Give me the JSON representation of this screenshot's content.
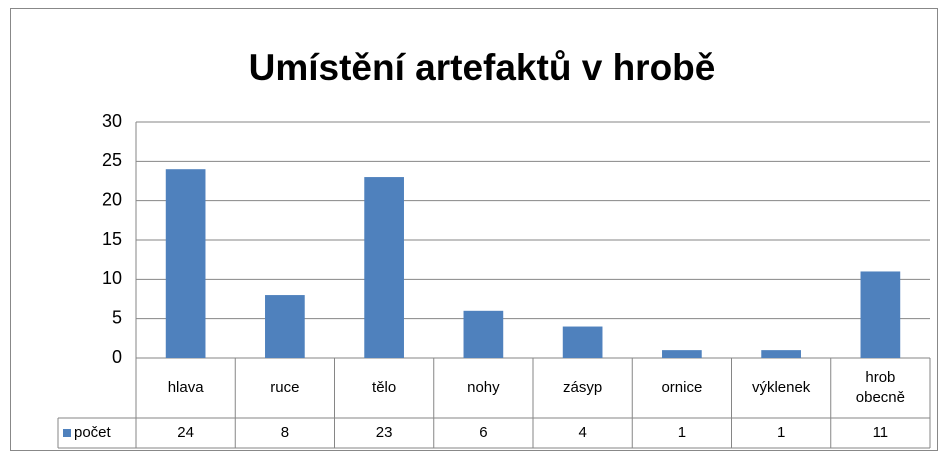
{
  "chart_data": {
    "type": "bar",
    "title": "Umístění artefaktů v hrobě",
    "categories": [
      "hlava",
      "ruce",
      "tělo",
      "nohy",
      "zásyp",
      "ornice",
      "výklenek",
      "hrob obecně"
    ],
    "series": [
      {
        "name": "počet",
        "color": "#4f81bd",
        "values": [
          24,
          8,
          23,
          6,
          4,
          1,
          1,
          11
        ]
      }
    ],
    "ylim": [
      0,
      30
    ],
    "yticks": [
      0,
      5,
      10,
      15,
      20,
      25,
      30
    ],
    "grid": true
  }
}
